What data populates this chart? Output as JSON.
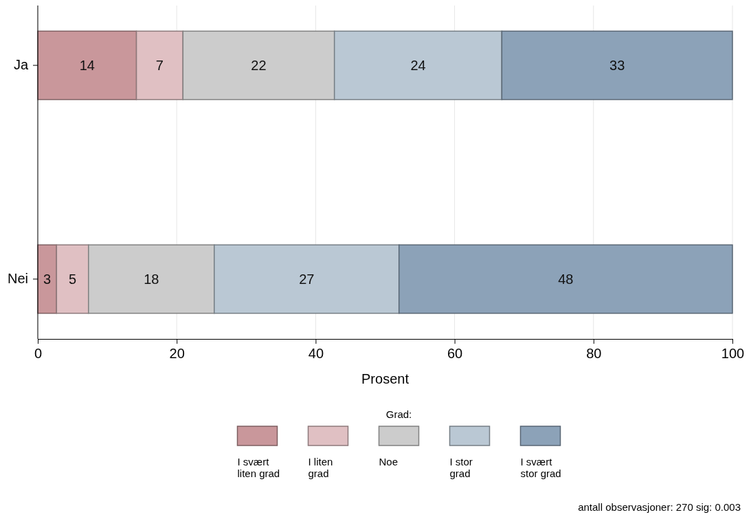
{
  "chart_data": {
    "type": "bar",
    "orientation": "horizontal",
    "stacked": true,
    "categories": [
      "Ja",
      "Nei"
    ],
    "series": [
      {
        "name": "I svært liten grad",
        "color": "#c9979b",
        "values": [
          14.2,
          2.7
        ],
        "value_labels": [
          "14",
          "3"
        ]
      },
      {
        "name": "I liten grad",
        "color": "#e0c0c3",
        "values": [
          6.7,
          4.6
        ],
        "value_labels": [
          "7",
          "5"
        ]
      },
      {
        "name": "Noe",
        "color": "#cccccc",
        "values": [
          21.8,
          18.1
        ],
        "value_labels": [
          "22",
          "18"
        ]
      },
      {
        "name": "I stor grad",
        "color": "#bac8d4",
        "values": [
          24.1,
          26.6
        ],
        "value_labels": [
          "24",
          "27"
        ]
      },
      {
        "name": "I svært stor grad",
        "color": "#8ca2b8",
        "values": [
          33.2,
          48.0
        ],
        "value_labels": [
          "33",
          "48"
        ]
      }
    ],
    "xlabel": "Prosent",
    "xlim": [
      0,
      100
    ],
    "xticks": [
      0,
      20,
      40,
      60,
      80,
      100
    ],
    "grid": "x",
    "legend": "bottom",
    "legend_title": "Grad:",
    "annotations": [
      "antall observasjoner: 270 sig: 0.003"
    ]
  }
}
